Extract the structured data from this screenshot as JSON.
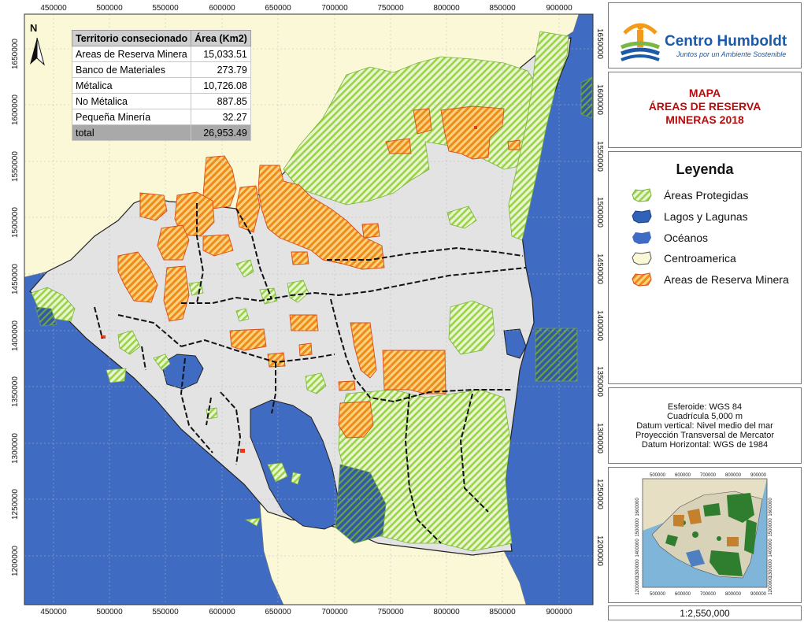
{
  "map": {
    "north_label": "N",
    "x_ticks": [
      "450000",
      "500000",
      "550000",
      "600000",
      "650000",
      "700000",
      "750000",
      "800000",
      "850000",
      "900000"
    ],
    "y_ticks": [
      "1650000",
      "1600000",
      "1550000",
      "1500000",
      "1450000",
      "1400000",
      "1350000",
      "1300000",
      "1250000",
      "1200000"
    ],
    "table": {
      "header": [
        "Territorio consecionado",
        "Área (Km2)"
      ],
      "rows": [
        [
          "Areas de Reserva Minera",
          "15,033.51"
        ],
        [
          "Banco de Materiales",
          "273.79"
        ],
        [
          "Métalica",
          "10,726.08"
        ],
        [
          "No Métalica",
          "887.85"
        ],
        [
          "Pequeña Minería",
          "32.27"
        ]
      ],
      "total": [
        "total",
        "26,953.49"
      ]
    },
    "colors": {
      "ocean": "#3f6cc2",
      "land": "#e4e4e4",
      "central_america": "#fbf8d8",
      "protected_green": "#9ad24a",
      "reserve_orange": "#f08a1c",
      "reserve_red": "#e23a16",
      "boundary": "#111111"
    }
  },
  "logo": {
    "name": "Centro Humboldt",
    "tagline": "Juntos por un Ambiente Sostenible"
  },
  "title": {
    "line1": "MAPA",
    "line2": "ÁREAS DE RESERVA",
    "line3": "MINERAS 2018"
  },
  "legend": {
    "title": "Leyenda",
    "items": [
      {
        "label": "Áreas Protegidas",
        "icon": "protected-areas-swatch"
      },
      {
        "label": "Lagos y Lagunas",
        "icon": "lakes-swatch"
      },
      {
        "label": "Océanos",
        "icon": "oceans-swatch"
      },
      {
        "label": "Centroamerica",
        "icon": "central-america-swatch"
      },
      {
        "label": "Areas de Reserva Minera",
        "icon": "mining-reserve-swatch"
      }
    ]
  },
  "datum": {
    "lines": [
      "Esferoide: WGS 84",
      "Cuadrícula 5,000 m",
      "Datum vertical: Nivel medio del mar",
      "Proyección Transversal de Mercator",
      "Datum Horizontal: WGS de 1984"
    ]
  },
  "inset": {
    "x_ticks": [
      "500000",
      "600000",
      "700000",
      "800000",
      "900000"
    ],
    "y_ticks": [
      "1600000",
      "1500000",
      "1400000",
      "1300000",
      "1200000"
    ]
  },
  "scale": "1:2,550,000"
}
